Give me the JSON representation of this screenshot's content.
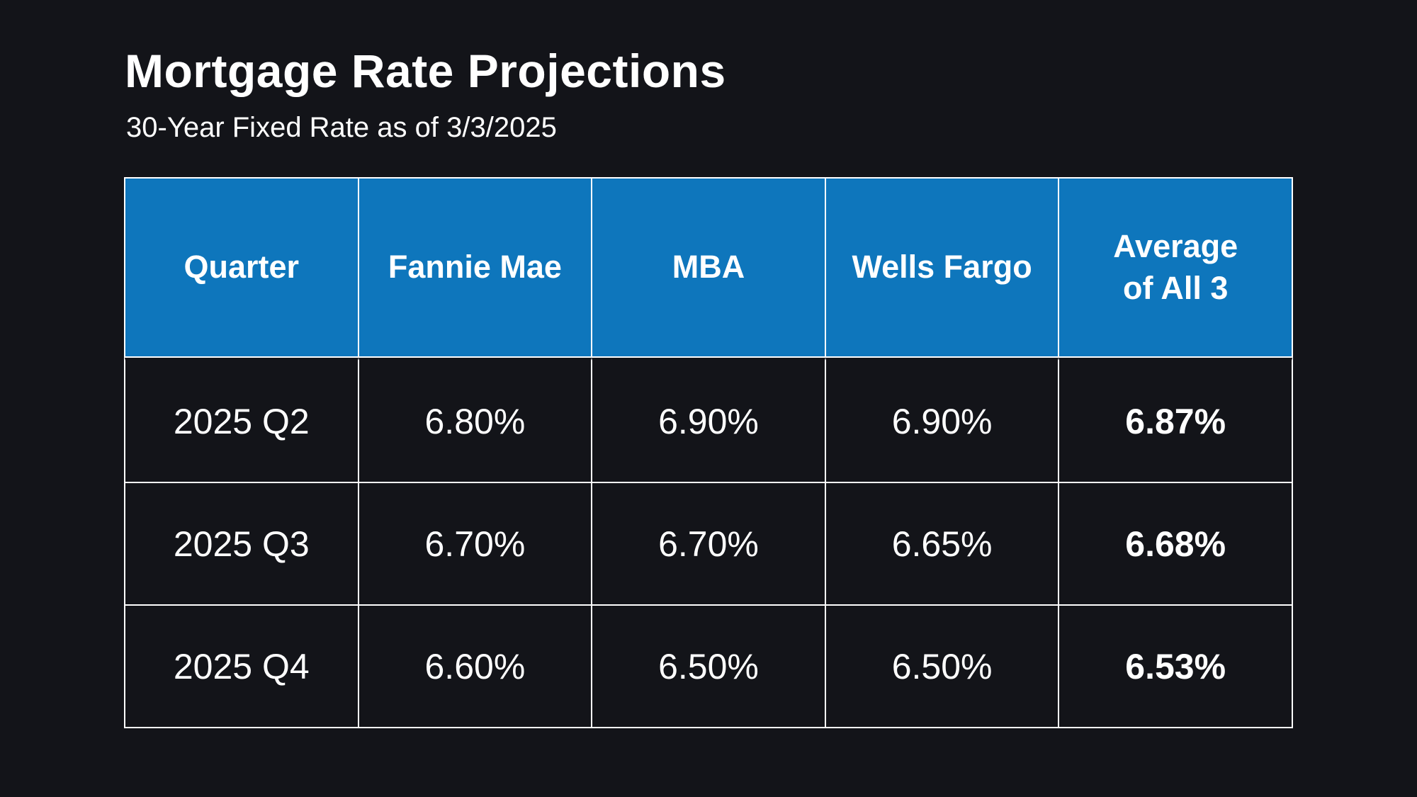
{
  "header": {
    "title": "Mortgage Rate Projections",
    "subtitle": "30-Year Fixed Rate as of 3/3/2025"
  },
  "colors": {
    "background": "#131419",
    "header_blue": "#0E76BC",
    "text": "#FFFFFF",
    "grid": "#FFFFFF"
  },
  "chart_data": {
    "type": "table",
    "title": "Mortgage Rate Projections",
    "subtitle": "30-Year Fixed Rate as of 3/3/2025",
    "columns": [
      "Quarter",
      "Fannie Mae",
      "MBA",
      "Wells Fargo",
      "Average\nof All 3"
    ],
    "rows": [
      [
        "2025 Q2",
        "6.80%",
        "6.90%",
        "6.90%",
        "6.87%"
      ],
      [
        "2025 Q3",
        "6.70%",
        "6.70%",
        "6.65%",
        "6.68%"
      ],
      [
        "2025 Q4",
        "6.60%",
        "6.50%",
        "6.50%",
        "6.53%"
      ]
    ],
    "notes": {
      "average_column_bold": true,
      "header_fill": "#0E76BC",
      "body_fill": "#131419",
      "gridline_color": "#FFFFFF"
    }
  }
}
